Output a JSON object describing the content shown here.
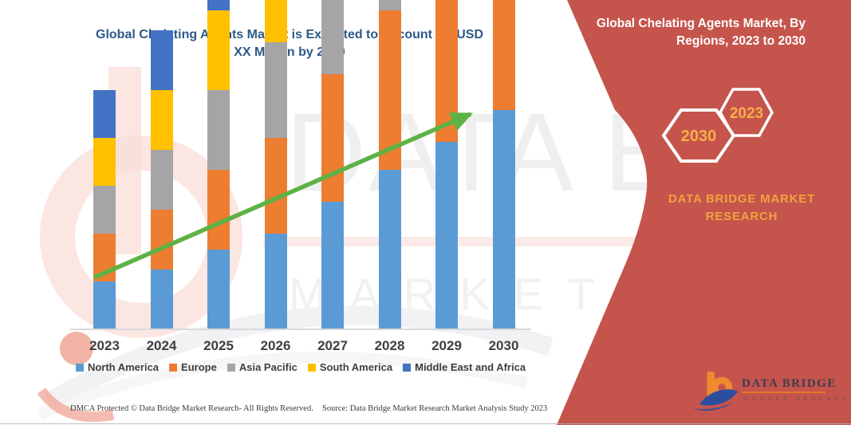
{
  "title": {
    "line1": "Global Chelating Agents Market is Expected to Account for USD",
    "line2": "XX Million by 2030"
  },
  "panel": {
    "heading_line1": "Global Chelating Agents Market, By",
    "heading_line2": "Regions, 2023 to 2030",
    "bg_color": "#c5544d",
    "hexagons": [
      {
        "label": "2030"
      },
      {
        "label": "2023"
      }
    ],
    "hexagon_text_color": "#f8ae4a",
    "brand_line1": "DATA BRIDGE MARKET",
    "brand_line2": "RESEARCH",
    "brand_text_color": "#f2a23c"
  },
  "watermark": {
    "line1": "DATA BRIDGE",
    "line2": "MARKET RESEARCH"
  },
  "logo": {
    "name": "DATA BRIDGE",
    "tagline": "MARKET RESEARCH",
    "b_color": "#ef8a2e",
    "swoosh_color": "#2d4e9e"
  },
  "footer": {
    "left": "DMCA Protected © Data Bridge Market Research-  All Rights Reserved.",
    "right": "Source: Data Bridge Market Research  Market Analysis Study 2023"
  },
  "chart_data": {
    "type": "bar",
    "stacked": true,
    "title": "Global Chelating Agents Market is Expected to Account for USD XX Million by 2030",
    "categories": [
      "2023",
      "2024",
      "2025",
      "2026",
      "2027",
      "2028",
      "2029",
      "2030"
    ],
    "series": [
      {
        "name": "North America",
        "color": "#5b9bd5",
        "values": [
          12,
          15,
          20,
          24,
          32,
          40,
          47,
          55
        ]
      },
      {
        "name": "Europe",
        "color": "#ed7d31",
        "values": [
          12,
          15,
          20,
          24,
          32,
          40,
          47,
          55
        ]
      },
      {
        "name": "Asia Pacific",
        "color": "#a5a5a5",
        "values": [
          12,
          15,
          20,
          24,
          32,
          40,
          47,
          55
        ]
      },
      {
        "name": "South America",
        "color": "#ffc000",
        "values": [
          12,
          15,
          20,
          24,
          32,
          40,
          47,
          55
        ]
      },
      {
        "name": "Middle East and Africa",
        "color": "#4472c4",
        "values": [
          12,
          15,
          20,
          24,
          32,
          40,
          47,
          55
        ]
      }
    ],
    "value_axis": {
      "visible": false,
      "note": "y-axis unlabeled; market value shown as XX Million placeholder; series values are relative units estimated from bar heights"
    },
    "xlabel": "",
    "ylabel": "",
    "ylim": [
      0,
      60
    ],
    "grid": false,
    "legend_position": "bottom",
    "trend_arrow": {
      "present": true,
      "color": "#5eb245",
      "direction": "up-right"
    }
  }
}
